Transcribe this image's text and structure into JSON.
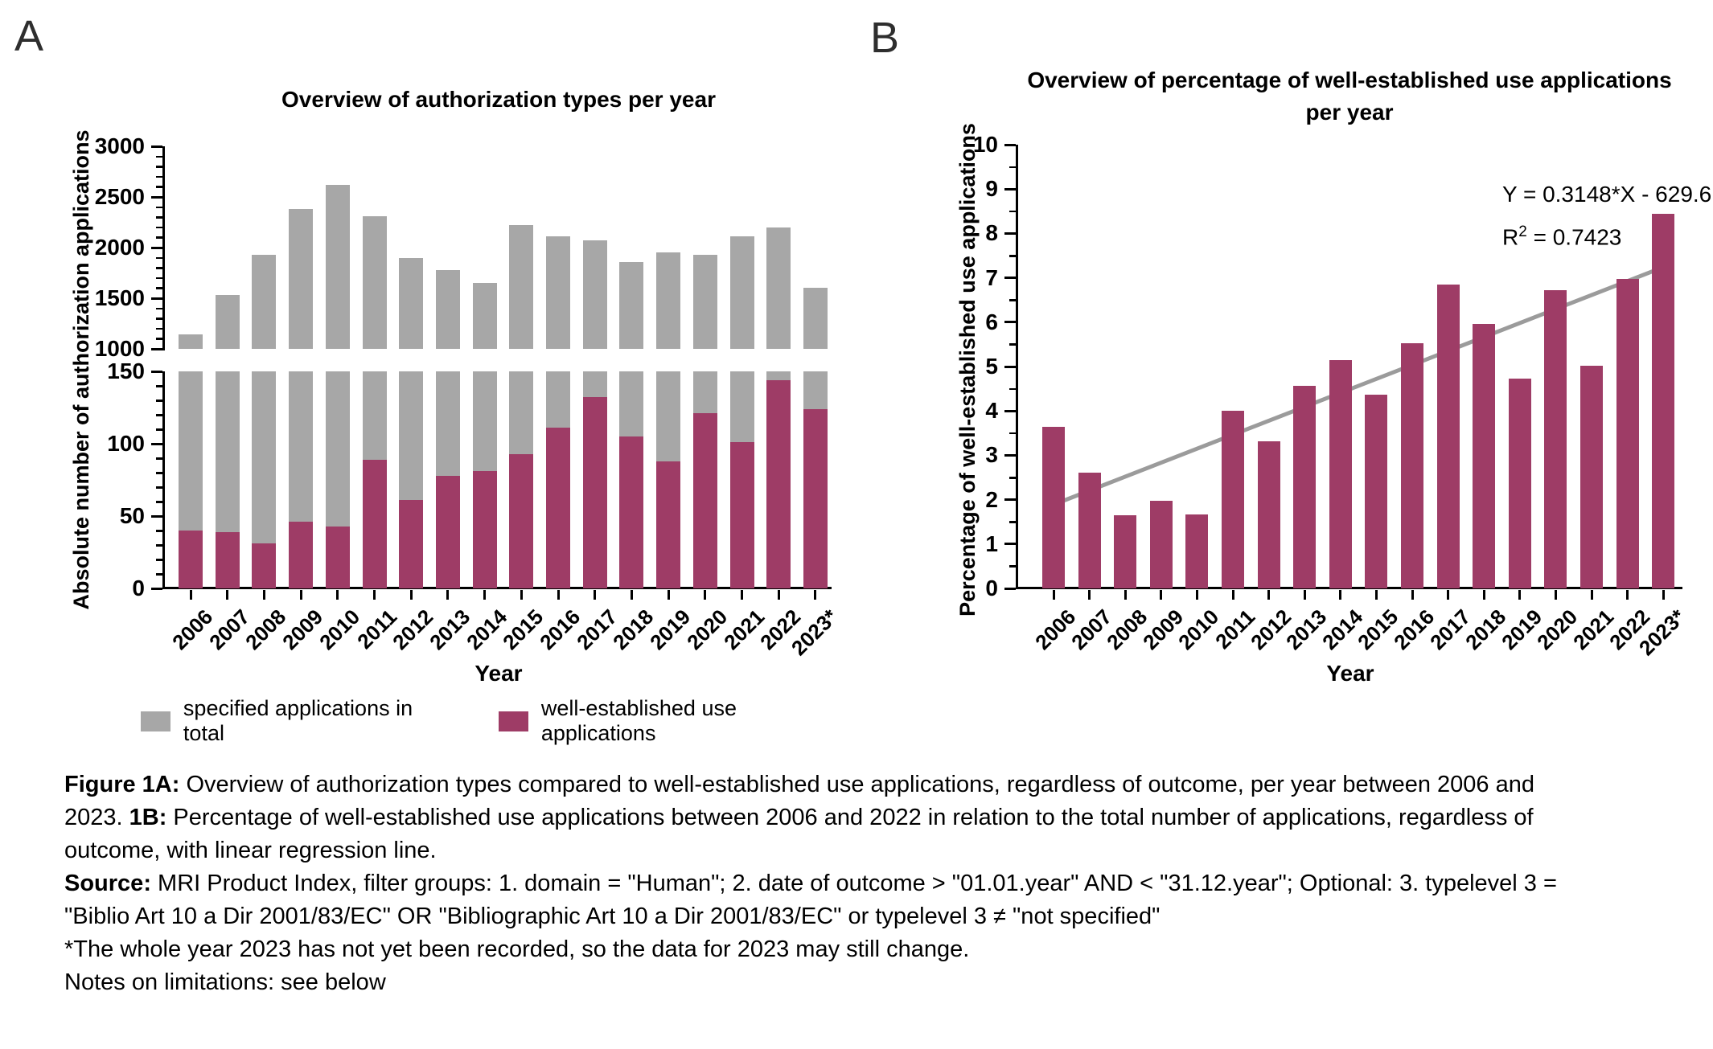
{
  "figure": {
    "caption_lines": [
      [
        {
          "text": "Figure 1A:",
          "bold": true
        },
        {
          "text": " Overview of authorization types compared to well-established use applications, regardless of outcome, per year between 2006 and",
          "bold": false
        }
      ],
      [
        {
          "text": "2023. ",
          "bold": false
        },
        {
          "text": "1B:",
          "bold": true
        },
        {
          "text": " Percentage of well-established use applications between 2006 and 2022 in relation to the total number of applications, regardless of",
          "bold": false
        }
      ],
      [
        {
          "text": "outcome, with linear regression line.",
          "bold": false
        }
      ],
      [
        {
          "text": "Source:",
          "bold": true
        },
        {
          "text": " MRI Product Index, filter groups: 1. domain = \"Human\"; 2. date of outcome > \"01.01.year\" AND < \"31.12.year\"; Optional: 3. typelevel 3 =",
          "bold": false
        }
      ],
      [
        {
          "text": "\"Biblio Art 10 a Dir 2001/83/EC\" OR \"Bibliographic Art 10 a Dir 2001/83/EC\" or typelevel 3 ≠ \"not specified\"",
          "bold": false
        }
      ],
      [
        {
          "text": "*The whole year 2023 has not yet been recorded, so the data for 2023 may still change.",
          "bold": false
        }
      ],
      [
        {
          "text": "Notes on limitations: see below",
          "bold": false
        }
      ]
    ]
  },
  "colors": {
    "bar_gray": "#a7a7a7",
    "bar_maroon": "#9e3c66",
    "regression_line": "#9b9b9b",
    "axis": "#000000"
  },
  "chart_data": [
    {
      "panel": "A",
      "type": "bar",
      "title": "Overview of authorization types per year",
      "xlabel": "Year",
      "ylabel": "Absolute number of authorization applications",
      "categories": [
        "2006",
        "2007",
        "2008",
        "2009",
        "2010",
        "2011",
        "2012",
        "2013",
        "2014",
        "2015",
        "2016",
        "2017",
        "2018",
        "2019",
        "2020",
        "2021",
        "2022",
        "2023*"
      ],
      "series": [
        {
          "name": "specified applications in total",
          "color": "#a7a7a7",
          "values": [
            1140,
            1530,
            1930,
            2380,
            2620,
            2310,
            1900,
            1780,
            1650,
            2220,
            2110,
            2070,
            1860,
            1950,
            1930,
            2110,
            2200,
            1600
          ]
        },
        {
          "name": "well-established use applications",
          "color": "#9e3c66",
          "values": [
            40,
            39,
            31,
            46,
            43,
            89,
            61,
            78,
            81,
            93,
            111,
            132,
            105,
            88,
            121,
            101,
            144,
            124
          ]
        }
      ],
      "y_axis": {
        "broken": true,
        "upper": {
          "range": [
            1000,
            3000
          ],
          "major_ticks": [
            1000,
            1500,
            2000,
            2500,
            3000
          ],
          "minor_step": 100
        },
        "lower": {
          "range": [
            0,
            150
          ],
          "major_ticks": [
            0,
            50,
            100,
            150
          ],
          "minor_step": 10
        }
      },
      "legend_position": "bottom",
      "grid": false
    },
    {
      "panel": "B",
      "type": "bar",
      "title_line1": "Overview of percentage of well-established use applications",
      "title_line2": "per year",
      "xlabel": "Year",
      "ylabel": "Percentage of well-established use applications",
      "categories": [
        "2006",
        "2007",
        "2008",
        "2009",
        "2010",
        "2011",
        "2012",
        "2013",
        "2014",
        "2015",
        "2016",
        "2017",
        "2018",
        "2019",
        "2020",
        "2021",
        "2022",
        "2023*"
      ],
      "series": [
        {
          "name": "well-established use applications",
          "color": "#9e3c66",
          "values": [
            3.65,
            2.6,
            1.64,
            1.97,
            1.67,
            4.0,
            3.31,
            4.56,
            5.15,
            4.36,
            5.53,
            6.85,
            5.96,
            4.72,
            6.73,
            5.02,
            6.97,
            8.45
          ]
        }
      ],
      "ylim": [
        0,
        10
      ],
      "y_major_step": 1,
      "y_minor_step": 0.5,
      "regression": {
        "slope": 0.3148,
        "intercept": -629.6,
        "equation_text": "Y = 0.3148*X - 629.6",
        "r2_base": "R",
        "r2_sup": "2",
        "r2_rest": " = 0.7423",
        "x_start": 2006,
        "x_end": 2023,
        "line_color": "#9b9b9b"
      },
      "grid": false
    }
  ]
}
